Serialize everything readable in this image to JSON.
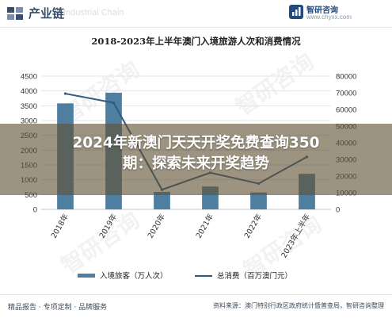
{
  "header": {
    "category": "产业链",
    "watermark": "Industrial Chain",
    "brand_name": "智研咨询",
    "brand_url": "www.chyxx.com"
  },
  "chart_data": {
    "type": "bar",
    "title": "2018-2023年上半年澳门入境旅游人次和消费情况",
    "categories": [
      "2018年",
      "2019年",
      "2020年",
      "2021年",
      "2022年",
      "2023年上半年"
    ],
    "y_left": {
      "lim": [
        0,
        4500
      ],
      "ticks": [
        0,
        500,
        1000,
        1500,
        2000,
        2500,
        3000,
        3500,
        4000,
        4500
      ]
    },
    "y_right": {
      "lim": [
        0,
        80000
      ],
      "ticks": [
        0,
        10000,
        20000,
        30000,
        40000,
        50000,
        60000,
        70000,
        80000
      ]
    },
    "series": [
      {
        "name": "入境旅客（万人次）",
        "kind": "bar",
        "axis": "left",
        "color": "#4f7fa0",
        "values": [
          3580,
          3940,
          590,
          770,
          570,
          1200
        ]
      },
      {
        "name": "总消费（百万澳门元）",
        "kind": "line",
        "axis": "right",
        "color": "#2c5a80",
        "values": [
          69500,
          64000,
          11800,
          22000,
          15500,
          31500
        ]
      }
    ],
    "grid": "horizontal",
    "legend": "bottom-center"
  },
  "overlay": {
    "line1": "2024年新澳门天天开奖免费查询350",
    "line2": "期：探索未来开奖趋势"
  },
  "footer": {
    "services": "精品报告 · 专项定制 · 品牌服务",
    "source": "资料来源：澳门特别行政区政府统计暨普查局，智研咨询整理"
  },
  "watermarks": [
    "智研咨询",
    "智研咨询",
    "智研咨询",
    "智研咨询"
  ],
  "colors": {
    "brand": "#244a7d",
    "bar": "#4f7fa0",
    "line": "#2c5a80"
  }
}
